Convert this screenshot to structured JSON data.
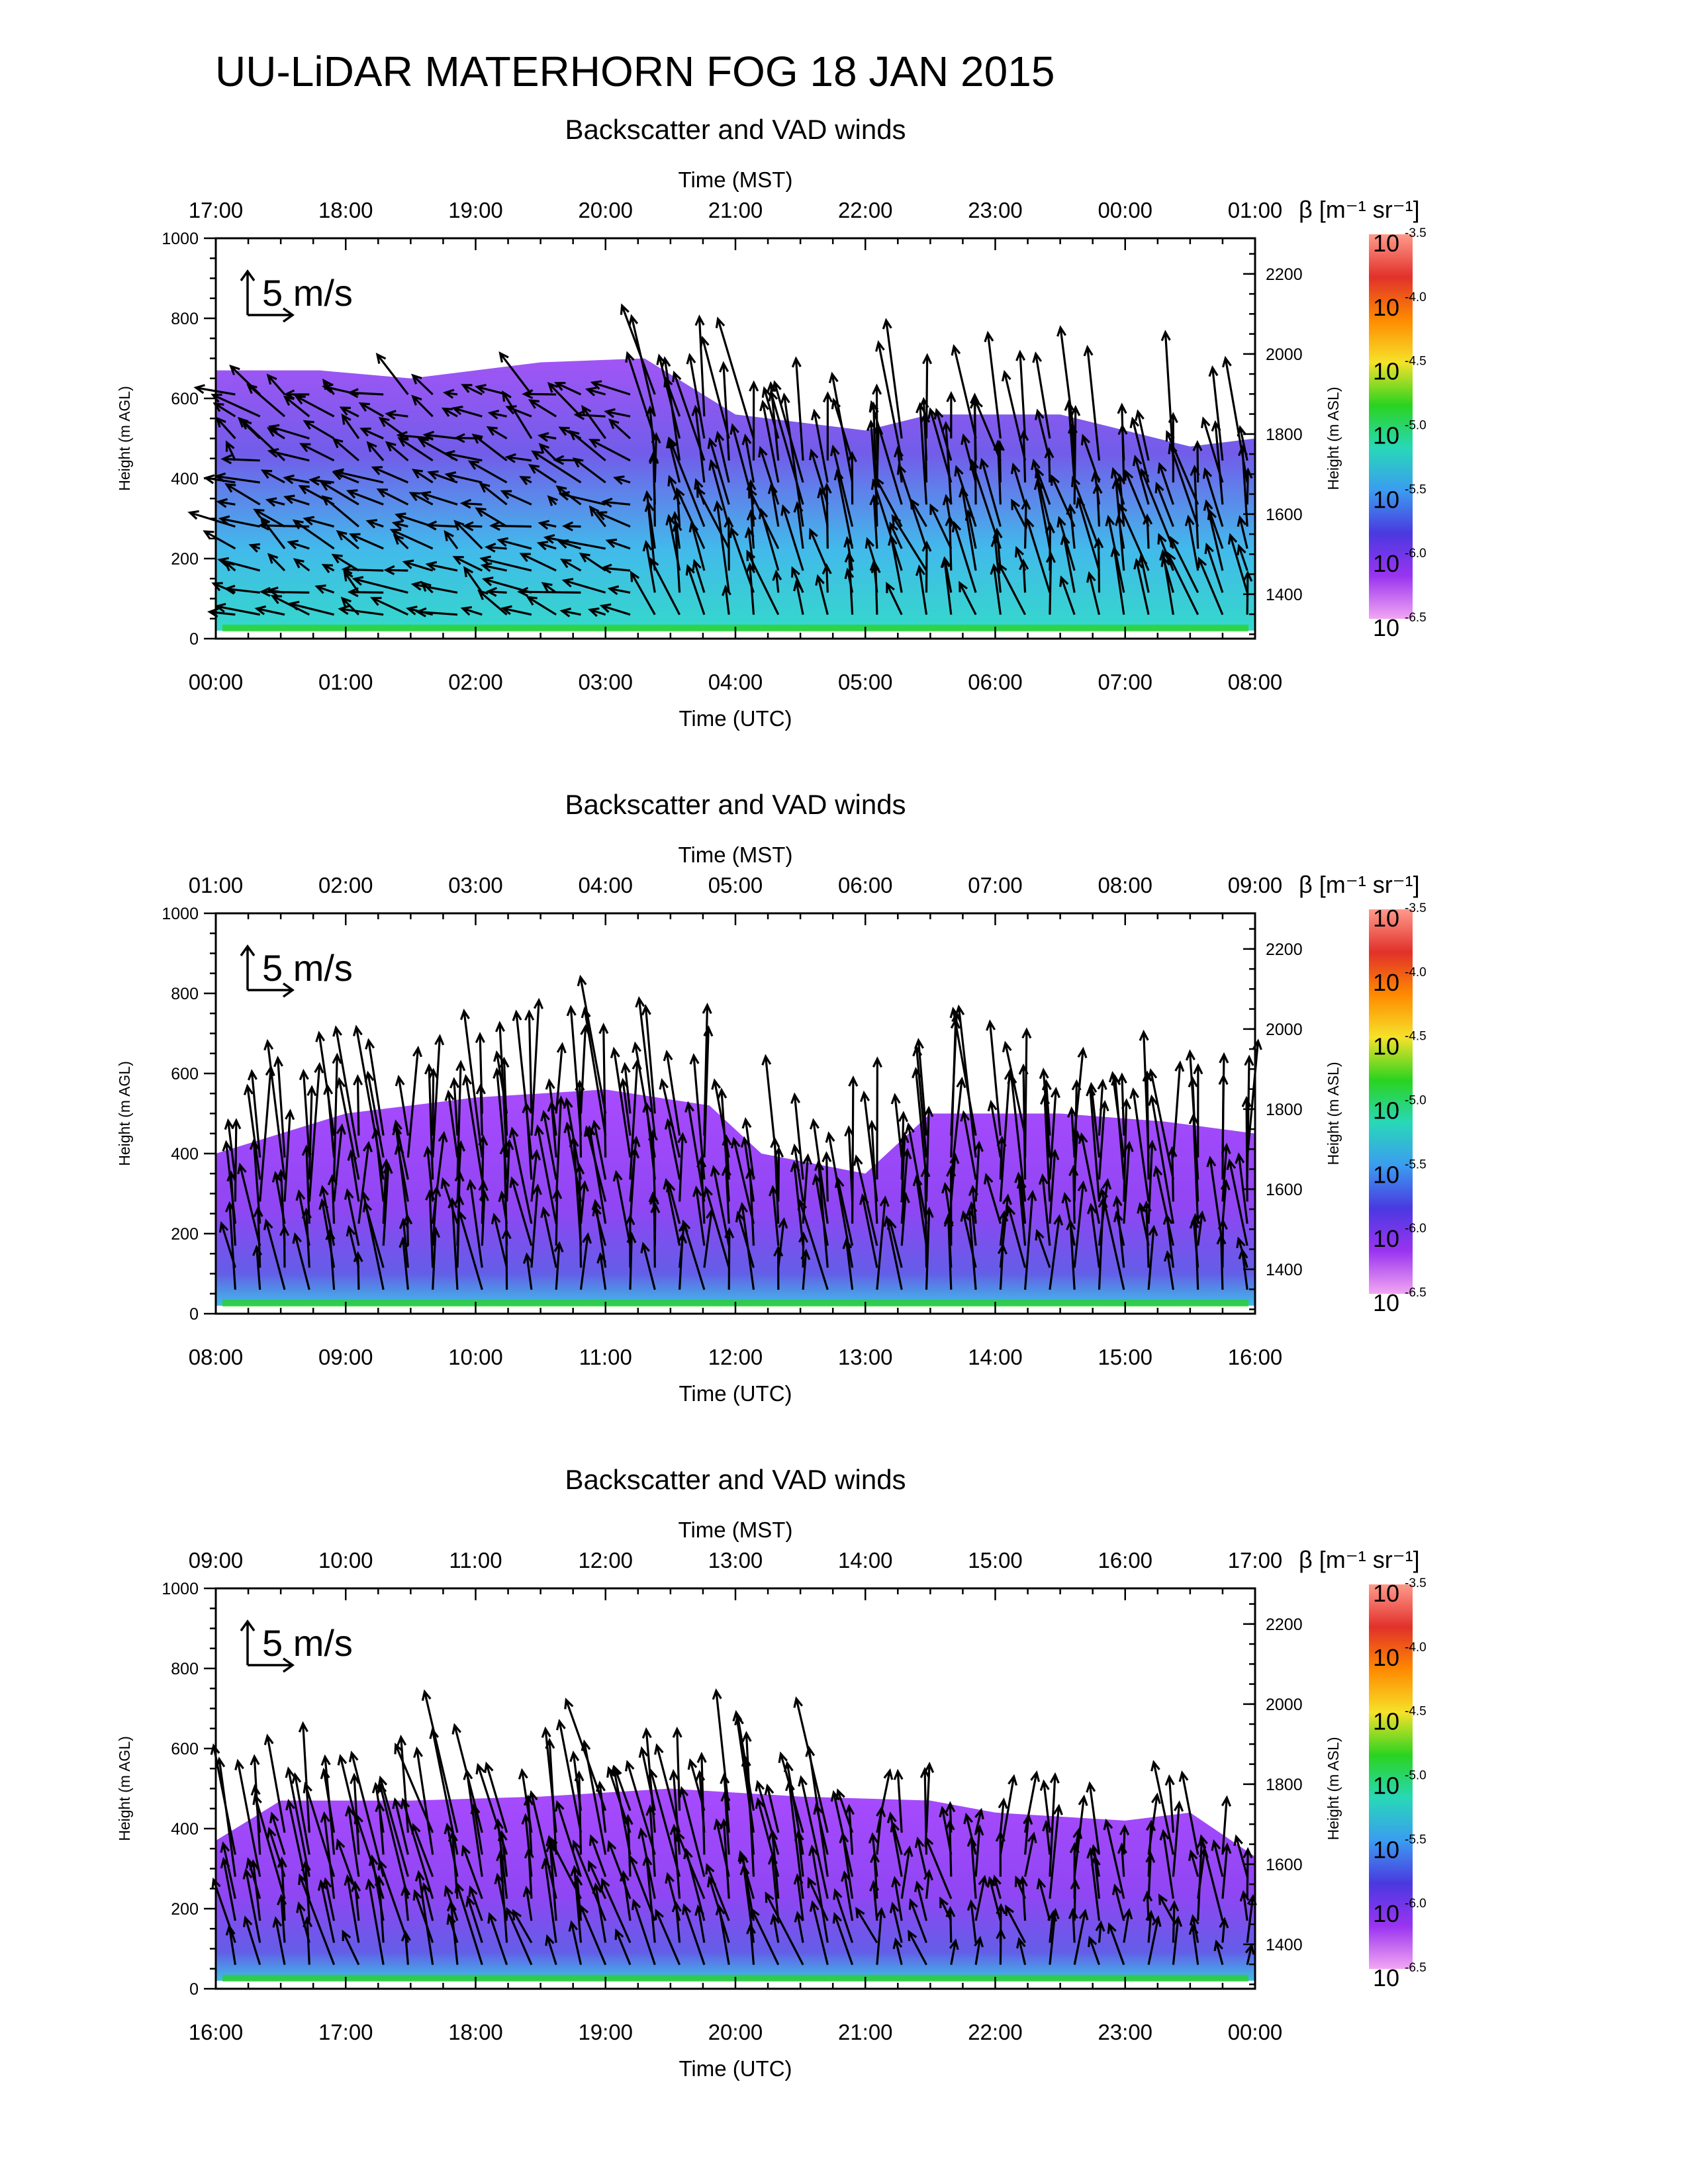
{
  "title": "UU-LiDAR MATERHORN FOG  18 JAN 2015",
  "colors": {
    "text": "#000000",
    "arrows": "#000000",
    "lowBackscatter": "#9a3cff",
    "highBackscatter": "#ff8a5a",
    "colorbar": [
      "#ff9a8c",
      "#e1312a",
      "#ff8a00",
      "#f6e22a",
      "#2ad31f",
      "#28d8b8",
      "#3b9cf0",
      "#4a39e0",
      "#9a34f0",
      "#f2a6f2"
    ]
  },
  "chart_data": [
    {
      "type": "heatmap",
      "subtitle": "Backscatter and VAD winds",
      "xlabel_bottom": "Time (UTC)",
      "xlabel_top": "Time (MST)",
      "ylabel_left": "Height (m AGL)",
      "ylabel_right": "Height (m ASL)",
      "xticks_bottom": [
        "00:00",
        "01:00",
        "02:00",
        "03:00",
        "04:00",
        "05:00",
        "06:00",
        "07:00",
        "08:00"
      ],
      "xticks_top": [
        "17:00",
        "18:00",
        "19:00",
        "20:00",
        "21:00",
        "22:00",
        "23:00",
        "00:00",
        "01:00"
      ],
      "ylim": [
        0,
        1000
      ],
      "yticks_left": [
        "0",
        "200",
        "400",
        "600",
        "800",
        "1000"
      ],
      "ylim_right": [
        1289,
        2289
      ],
      "yticks_right": [
        "1400",
        "1600",
        "1800",
        "2000",
        "2200"
      ],
      "reference_vector": "5 m/s",
      "colorbar_label": "β [m⁻¹ sr⁻¹]",
      "colorbar_ticks": [
        "-3.5",
        "-4.0",
        "-4.5",
        "-5.0",
        "-5.5",
        "-6.0",
        "-6.5"
      ],
      "colorbar_base": "10",
      "layer_top_m": [
        670,
        670,
        650,
        690,
        700,
        560,
        520,
        560,
        560,
        480,
        500
      ],
      "layer_hours": [
        0,
        0.8,
        1.5,
        2.5,
        3.3,
        4.0,
        5.0,
        5.5,
        6.5,
        7.5,
        8.0
      ],
      "wind_regimes": [
        {
          "hours": [
            0,
            3.2
          ],
          "u_ms": -1.6,
          "v_ms": 0.7
        },
        {
          "hours": [
            3.2,
            8.0
          ],
          "u_ms": -0.7,
          "v_ms": 3.0
        }
      ]
    },
    {
      "type": "heatmap",
      "subtitle": "Backscatter and VAD winds",
      "xlabel_bottom": "Time (UTC)",
      "xlabel_top": "Time (MST)",
      "ylabel_left": "Height (m AGL)",
      "ylabel_right": "Height (m ASL)",
      "xticks_bottom": [
        "08:00",
        "09:00",
        "10:00",
        "11:00",
        "12:00",
        "13:00",
        "14:00",
        "15:00",
        "16:00"
      ],
      "xticks_top": [
        "01:00",
        "02:00",
        "03:00",
        "04:00",
        "05:00",
        "06:00",
        "07:00",
        "08:00",
        "09:00"
      ],
      "ylim": [
        0,
        1000
      ],
      "yticks_left": [
        "0",
        "200",
        "400",
        "600",
        "800",
        "1000"
      ],
      "ylim_right": [
        1289,
        2289
      ],
      "yticks_right": [
        "1400",
        "1600",
        "1800",
        "2000",
        "2200"
      ],
      "reference_vector": "5 m/s",
      "colorbar_label": "β [m⁻¹ sr⁻¹]",
      "colorbar_ticks": [
        "-3.5",
        "-4.0",
        "-4.5",
        "-5.0",
        "-5.5",
        "-6.0",
        "-6.5"
      ],
      "colorbar_base": "10",
      "layer_top_m": [
        400,
        500,
        540,
        560,
        520,
        400,
        350,
        500,
        500,
        480,
        450
      ],
      "layer_hours": [
        0,
        1.0,
        2.0,
        3.0,
        3.8,
        4.2,
        5.0,
        5.5,
        6.5,
        7.3,
        8.0
      ],
      "wind_regimes": [
        {
          "hours": [
            0,
            8.0
          ],
          "u_ms": -0.3,
          "v_ms": 3.8
        }
      ]
    },
    {
      "type": "heatmap",
      "subtitle": "Backscatter and VAD winds",
      "xlabel_bottom": "Time (UTC)",
      "xlabel_top": "Time (MST)",
      "ylabel_left": "Height (m AGL)",
      "ylabel_right": "Height (m ASL)",
      "xticks_bottom": [
        "16:00",
        "17:00",
        "18:00",
        "19:00",
        "20:00",
        "21:00",
        "22:00",
        "23:00",
        "00:00"
      ],
      "xticks_top": [
        "09:00",
        "10:00",
        "11:00",
        "12:00",
        "13:00",
        "14:00",
        "15:00",
        "16:00",
        "17:00"
      ],
      "ylim": [
        0,
        1000
      ],
      "yticks_left": [
        "0",
        "200",
        "400",
        "600",
        "800",
        "1000"
      ],
      "ylim_right": [
        1289,
        2289
      ],
      "yticks_right": [
        "1400",
        "1600",
        "1800",
        "2000",
        "2200"
      ],
      "reference_vector": "5 m/s",
      "colorbar_label": "β [m⁻¹ sr⁻¹]",
      "colorbar_ticks": [
        "-3.5",
        "-4.0",
        "-4.5",
        "-5.0",
        "-5.5",
        "-6.0",
        "-6.5"
      ],
      "colorbar_base": "10",
      "layer_top_m": [
        370,
        470,
        470,
        480,
        500,
        480,
        470,
        440,
        420,
        440,
        330
      ],
      "layer_hours": [
        0,
        0.5,
        1.5,
        2.5,
        3.5,
        4.5,
        5.5,
        6.0,
        7.0,
        7.5,
        8.0
      ],
      "wind_regimes": [
        {
          "hours": [
            0,
            5.0
          ],
          "u_ms": -0.9,
          "v_ms": 3.4
        },
        {
          "hours": [
            5.0,
            8.0
          ],
          "u_ms": -0.2,
          "v_ms": 2.2
        }
      ]
    }
  ]
}
